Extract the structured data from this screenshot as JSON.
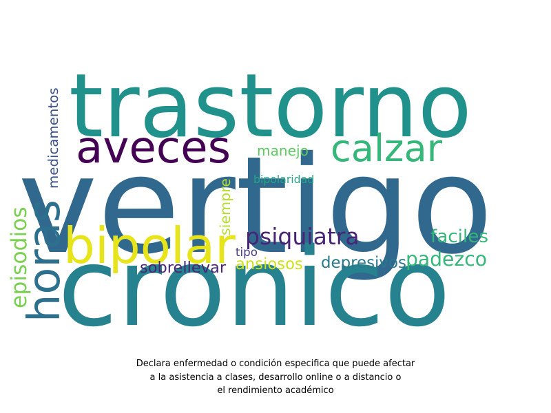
{
  "chart_data": {
    "type": "wordcloud",
    "title_lines": [
      "Declara enfermedad o condición especifica que puede afectar",
      "a la asistencia a clases, desarrollo online o a distancio o",
      "el rendimiento académico"
    ],
    "words": [
      {
        "text": "vertigo",
        "weight": 100,
        "color": "#31688e"
      },
      {
        "text": "cronico",
        "weight": 86,
        "color": "#26828e"
      },
      {
        "text": "trastorno",
        "weight": 82,
        "color": "#21918c"
      },
      {
        "text": "aveces",
        "weight": 49,
        "color": "#440154"
      },
      {
        "text": "bipolar",
        "weight": 54,
        "color": "#e7e419"
      },
      {
        "text": "calzar",
        "weight": 39,
        "color": "#35b779"
      },
      {
        "text": "horas",
        "weight": 39,
        "color": "#2d708e"
      },
      {
        "text": "episodios",
        "weight": 23,
        "color": "#7ad151"
      },
      {
        "text": "medicamentos",
        "weight": 18,
        "color": "#3b528b"
      },
      {
        "text": "psiquiatra",
        "weight": 26,
        "color": "#482475"
      },
      {
        "text": "padezco",
        "weight": 23,
        "color": "#35b779"
      },
      {
        "text": "depresivos",
        "weight": 19,
        "color": "#2a788e"
      },
      {
        "text": "manejo",
        "weight": 18,
        "color": "#5ec962"
      },
      {
        "text": "siempre",
        "weight": 17,
        "color": "#b5de2b"
      },
      {
        "text": "faciles",
        "weight": 18,
        "color": "#35b779"
      },
      {
        "text": "sobrellevar",
        "weight": 17,
        "color": "#482475"
      },
      {
        "text": "ansiosos",
        "weight": 17,
        "color": "#cde11d"
      },
      {
        "text": "bipolaridad",
        "weight": 12,
        "color": "#22a884"
      },
      {
        "text": "tipo",
        "weight": 11,
        "color": "#443a83"
      }
    ]
  }
}
